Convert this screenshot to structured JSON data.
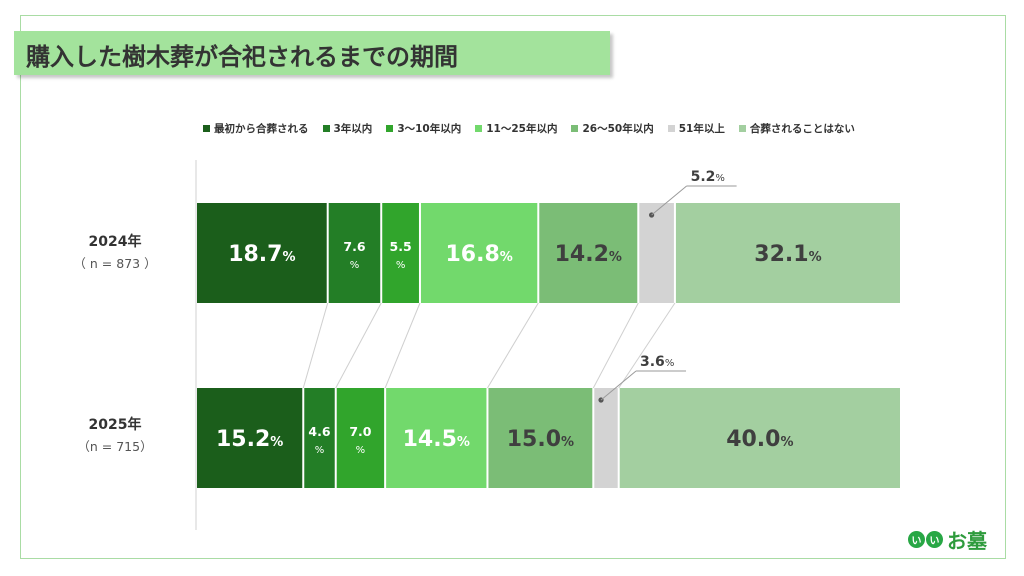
{
  "title": "購入した樹木葬が合祀されるまでの期間",
  "brand": {
    "dot1": "い",
    "dot2": "い",
    "text": "お墓"
  },
  "chart_data": {
    "type": "bar",
    "orientation": "horizontal-stacked-100",
    "unit": "%",
    "categories": [
      "最初から合葬される",
      "3年以内",
      "3〜10年以内",
      "11〜25年以内",
      "26〜50年以内",
      "51年以上",
      "合葬されることはない"
    ],
    "colors": [
      "#1b5e1b",
      "#237e26",
      "#31a52c",
      "#72d96c",
      "#7bbd76",
      "#d3d3d3",
      "#a3cfa0"
    ],
    "rows": [
      {
        "label": "2024年",
        "n": "（ n = 873 ）",
        "values": [
          18.7,
          7.6,
          5.5,
          16.8,
          14.2,
          5.2,
          32.1
        ]
      },
      {
        "label": "2025年",
        "n": "（n = 715）",
        "values": [
          15.2,
          4.6,
          7.0,
          14.5,
          15.0,
          3.6,
          40.0
        ]
      }
    ],
    "legend_position": "top",
    "grid": false
  }
}
